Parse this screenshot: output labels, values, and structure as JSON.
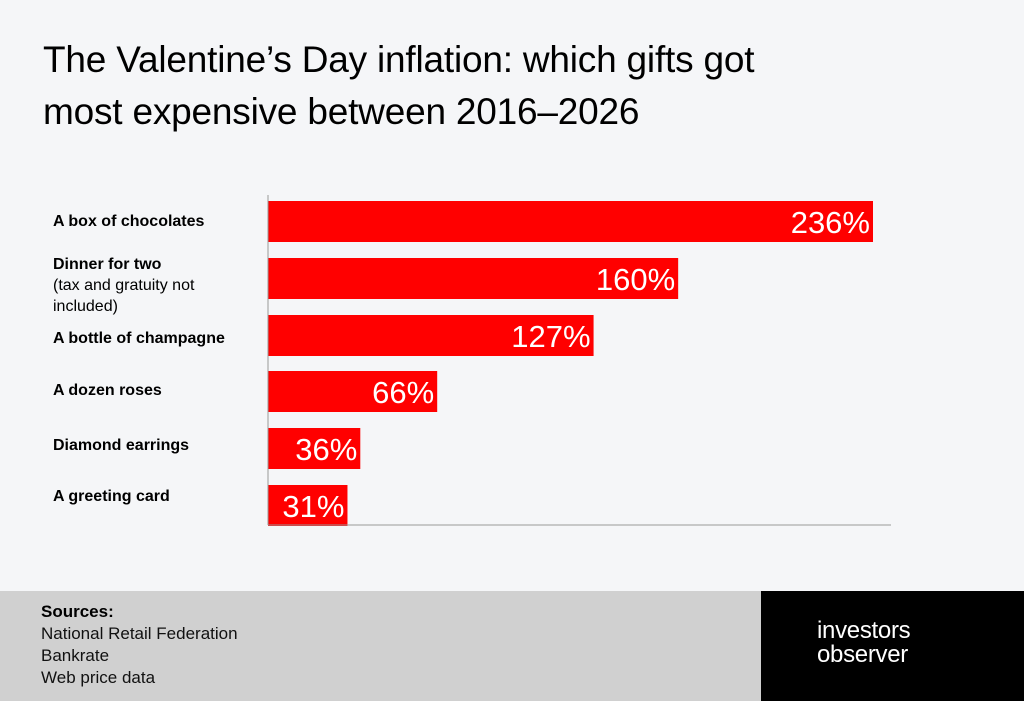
{
  "chart_data": {
    "type": "bar",
    "orientation": "horizontal",
    "title_line1": "The Valentine’s Day inflation: which gifts got",
    "title_line2": "most expensive between 2016–2026",
    "categories": [
      {
        "label": "A box of chocolates",
        "sublabel": ""
      },
      {
        "label": "Dinner for two",
        "sublabel": "(tax and gratuity not included)"
      },
      {
        "label": "A bottle of champagne",
        "sublabel": ""
      },
      {
        "label": "A dozen roses",
        "sublabel": ""
      },
      {
        "label": "Diamond earrings",
        "sublabel": ""
      },
      {
        "label": "A greeting card",
        "sublabel": ""
      }
    ],
    "values": [
      236,
      160,
      127,
      66,
      36,
      31
    ],
    "value_labels": [
      "236%",
      "160%",
      "127%",
      "66%",
      "36%",
      "31%"
    ],
    "unit": "%",
    "xlim": [
      0,
      240
    ],
    "grid": false,
    "legend": "none",
    "bar_color": "#ff0000",
    "value_label_color": "#ffffff"
  },
  "footer": {
    "sources_title": "Sources:",
    "sources": [
      "National Retail Federation",
      "Bankrate",
      "Web price data"
    ],
    "logo_line1": "investors",
    "logo_line2": "observer"
  },
  "colors": {
    "background": "#f5f6f8",
    "footer_left": "#d0d0d0",
    "footer_right": "#000000",
    "bar": "#ff0000",
    "axis": "#999999"
  }
}
